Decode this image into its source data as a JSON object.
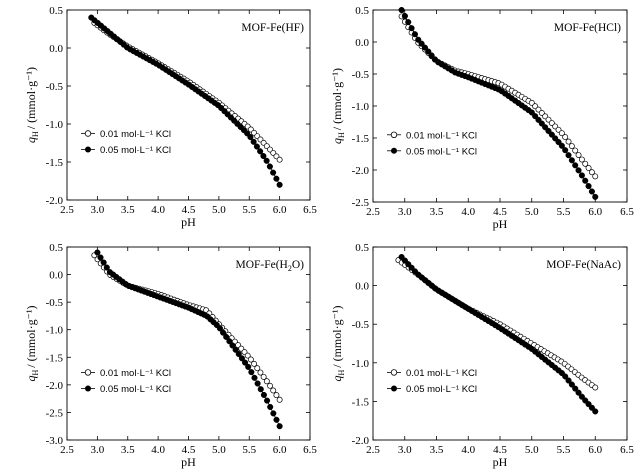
{
  "figure": {
    "xlabel": "pH",
    "ylabel_main": "q",
    "ylabel_sub": "H",
    "ylabel_unit": "/ (mmol·g⁻¹)"
  },
  "chart_data": [
    {
      "type": "scatter",
      "title": "MOF-Fe(HF)",
      "xlim": [
        2.5,
        6.5
      ],
      "ylim": [
        -2.0,
        0.5
      ],
      "xticks": [
        "2.5",
        "3.0",
        "3.5",
        "4.0",
        "4.5",
        "5.0",
        "5.5",
        "6.0",
        "6.5"
      ],
      "yticks": [
        "-2.0",
        "-1.5",
        "-1.0",
        "-0.5",
        "0.0",
        "0.5"
      ],
      "legend": [
        "0.01 mol·L⁻¹ KCl",
        "0.05 mol·L⁻¹ KCl"
      ],
      "series": [
        {
          "name": "0.01 mol·L⁻¹ KCl",
          "marker": "open-circle",
          "x": [
            2.95,
            3.2,
            3.5,
            4.0,
            4.5,
            5.0,
            5.5,
            5.8,
            6.0
          ],
          "y": [
            0.33,
            0.18,
            0.02,
            -0.2,
            -0.44,
            -0.72,
            -1.05,
            -1.3,
            -1.47
          ]
        },
        {
          "name": "0.05 mol·L⁻¹ KCl",
          "marker": "filled-circle",
          "x": [
            2.9,
            3.2,
            3.5,
            4.0,
            4.5,
            5.0,
            5.5,
            5.8,
            6.0
          ],
          "y": [
            0.4,
            0.2,
            0.0,
            -0.22,
            -0.48,
            -0.76,
            -1.15,
            -1.5,
            -1.8
          ]
        }
      ]
    },
    {
      "type": "scatter",
      "title": "MOF-Fe(HCl)",
      "xlim": [
        2.5,
        6.5
      ],
      "ylim": [
        -2.5,
        0.5
      ],
      "xticks": [
        "2.5",
        "3.0",
        "3.5",
        "4.0",
        "4.5",
        "5.0",
        "5.5",
        "6.0",
        "6.5"
      ],
      "yticks": [
        "-2.5",
        "-2.0",
        "-1.5",
        "-1.0",
        "-0.5",
        "0.0",
        "0.5"
      ],
      "legend": [
        "0.01 mol·L⁻¹ KCl",
        "0.05 mol·L⁻¹ KCl"
      ],
      "series": [
        {
          "name": "0.01 mol·L⁻¹ KCl",
          "marker": "open-circle",
          "x": [
            2.95,
            3.2,
            3.5,
            3.8,
            4.0,
            4.5,
            5.0,
            5.5,
            5.8,
            6.0
          ],
          "y": [
            0.4,
            0.0,
            -0.3,
            -0.45,
            -0.5,
            -0.65,
            -0.95,
            -1.45,
            -1.85,
            -2.1
          ]
        },
        {
          "name": "0.05 mol·L⁻¹ KCl",
          "marker": "filled-circle",
          "x": [
            2.95,
            3.2,
            3.5,
            3.8,
            4.0,
            4.5,
            5.0,
            5.5,
            5.8,
            6.0
          ],
          "y": [
            0.5,
            0.05,
            -0.3,
            -0.48,
            -0.55,
            -0.75,
            -1.1,
            -1.65,
            -2.1,
            -2.42
          ]
        }
      ]
    },
    {
      "type": "scatter",
      "title": "MOF-Fe(H2O)",
      "title_main": "MOF-Fe(H",
      "title_sub": "2",
      "title_end": "O)",
      "xlim": [
        2.5,
        6.5
      ],
      "ylim": [
        -3.0,
        0.5
      ],
      "xticks": [
        "2.5",
        "3.0",
        "3.5",
        "4.0",
        "4.5",
        "5.0",
        "5.5",
        "6.0",
        "6.5"
      ],
      "yticks": [
        "-3.0",
        "-2.5",
        "-2.0",
        "-1.5",
        "-1.0",
        "-0.5",
        "0.0",
        "0.5"
      ],
      "legend": [
        "0.01 mol·L⁻¹ KCl",
        "0.05 mol·L⁻¹ KCl"
      ],
      "series": [
        {
          "name": "0.01 mol·L⁻¹ KCl",
          "marker": "open-circle",
          "x": [
            2.95,
            3.2,
            3.5,
            4.0,
            4.5,
            4.8,
            5.0,
            5.5,
            5.8,
            6.0
          ],
          "y": [
            0.35,
            0.0,
            -0.2,
            -0.35,
            -0.55,
            -0.65,
            -0.9,
            -1.5,
            -1.95,
            -2.27
          ]
        },
        {
          "name": "0.05 mol·L⁻¹ KCl",
          "marker": "filled-circle",
          "x": [
            3.0,
            3.2,
            3.5,
            4.0,
            4.5,
            4.8,
            5.0,
            5.5,
            5.8,
            6.0
          ],
          "y": [
            0.4,
            0.05,
            -0.2,
            -0.4,
            -0.6,
            -0.75,
            -0.95,
            -1.7,
            -2.3,
            -2.75
          ]
        }
      ]
    },
    {
      "type": "scatter",
      "title": "MOF-Fe(NaAc)",
      "xlim": [
        2.5,
        6.5
      ],
      "ylim": [
        -2.0,
        0.5
      ],
      "xticks": [
        "2.5",
        "3.0",
        "3.5",
        "4.0",
        "4.5",
        "5.0",
        "5.5",
        "6.0",
        "6.5"
      ],
      "yticks": [
        "-2.0",
        "-1.5",
        "-1.0",
        "-0.5",
        "0.0",
        "0.5"
      ],
      "legend": [
        "0.01 mol·L⁻¹ KCl",
        "0.05 mol·L⁻¹ KCl"
      ],
      "series": [
        {
          "name": "0.01 mol·L⁻¹ KCl",
          "marker": "open-circle",
          "x": [
            2.9,
            3.2,
            3.5,
            4.0,
            4.5,
            5.0,
            5.5,
            5.8,
            6.0
          ],
          "y": [
            0.33,
            0.15,
            -0.05,
            -0.3,
            -0.5,
            -0.75,
            -1.0,
            -1.2,
            -1.32
          ]
        },
        {
          "name": "0.05 mol·L⁻¹ KCl",
          "marker": "filled-circle",
          "x": [
            2.95,
            3.2,
            3.5,
            4.0,
            4.5,
            5.0,
            5.5,
            5.8,
            6.0
          ],
          "y": [
            0.37,
            0.15,
            -0.05,
            -0.3,
            -0.55,
            -0.82,
            -1.15,
            -1.45,
            -1.63
          ]
        }
      ]
    }
  ]
}
